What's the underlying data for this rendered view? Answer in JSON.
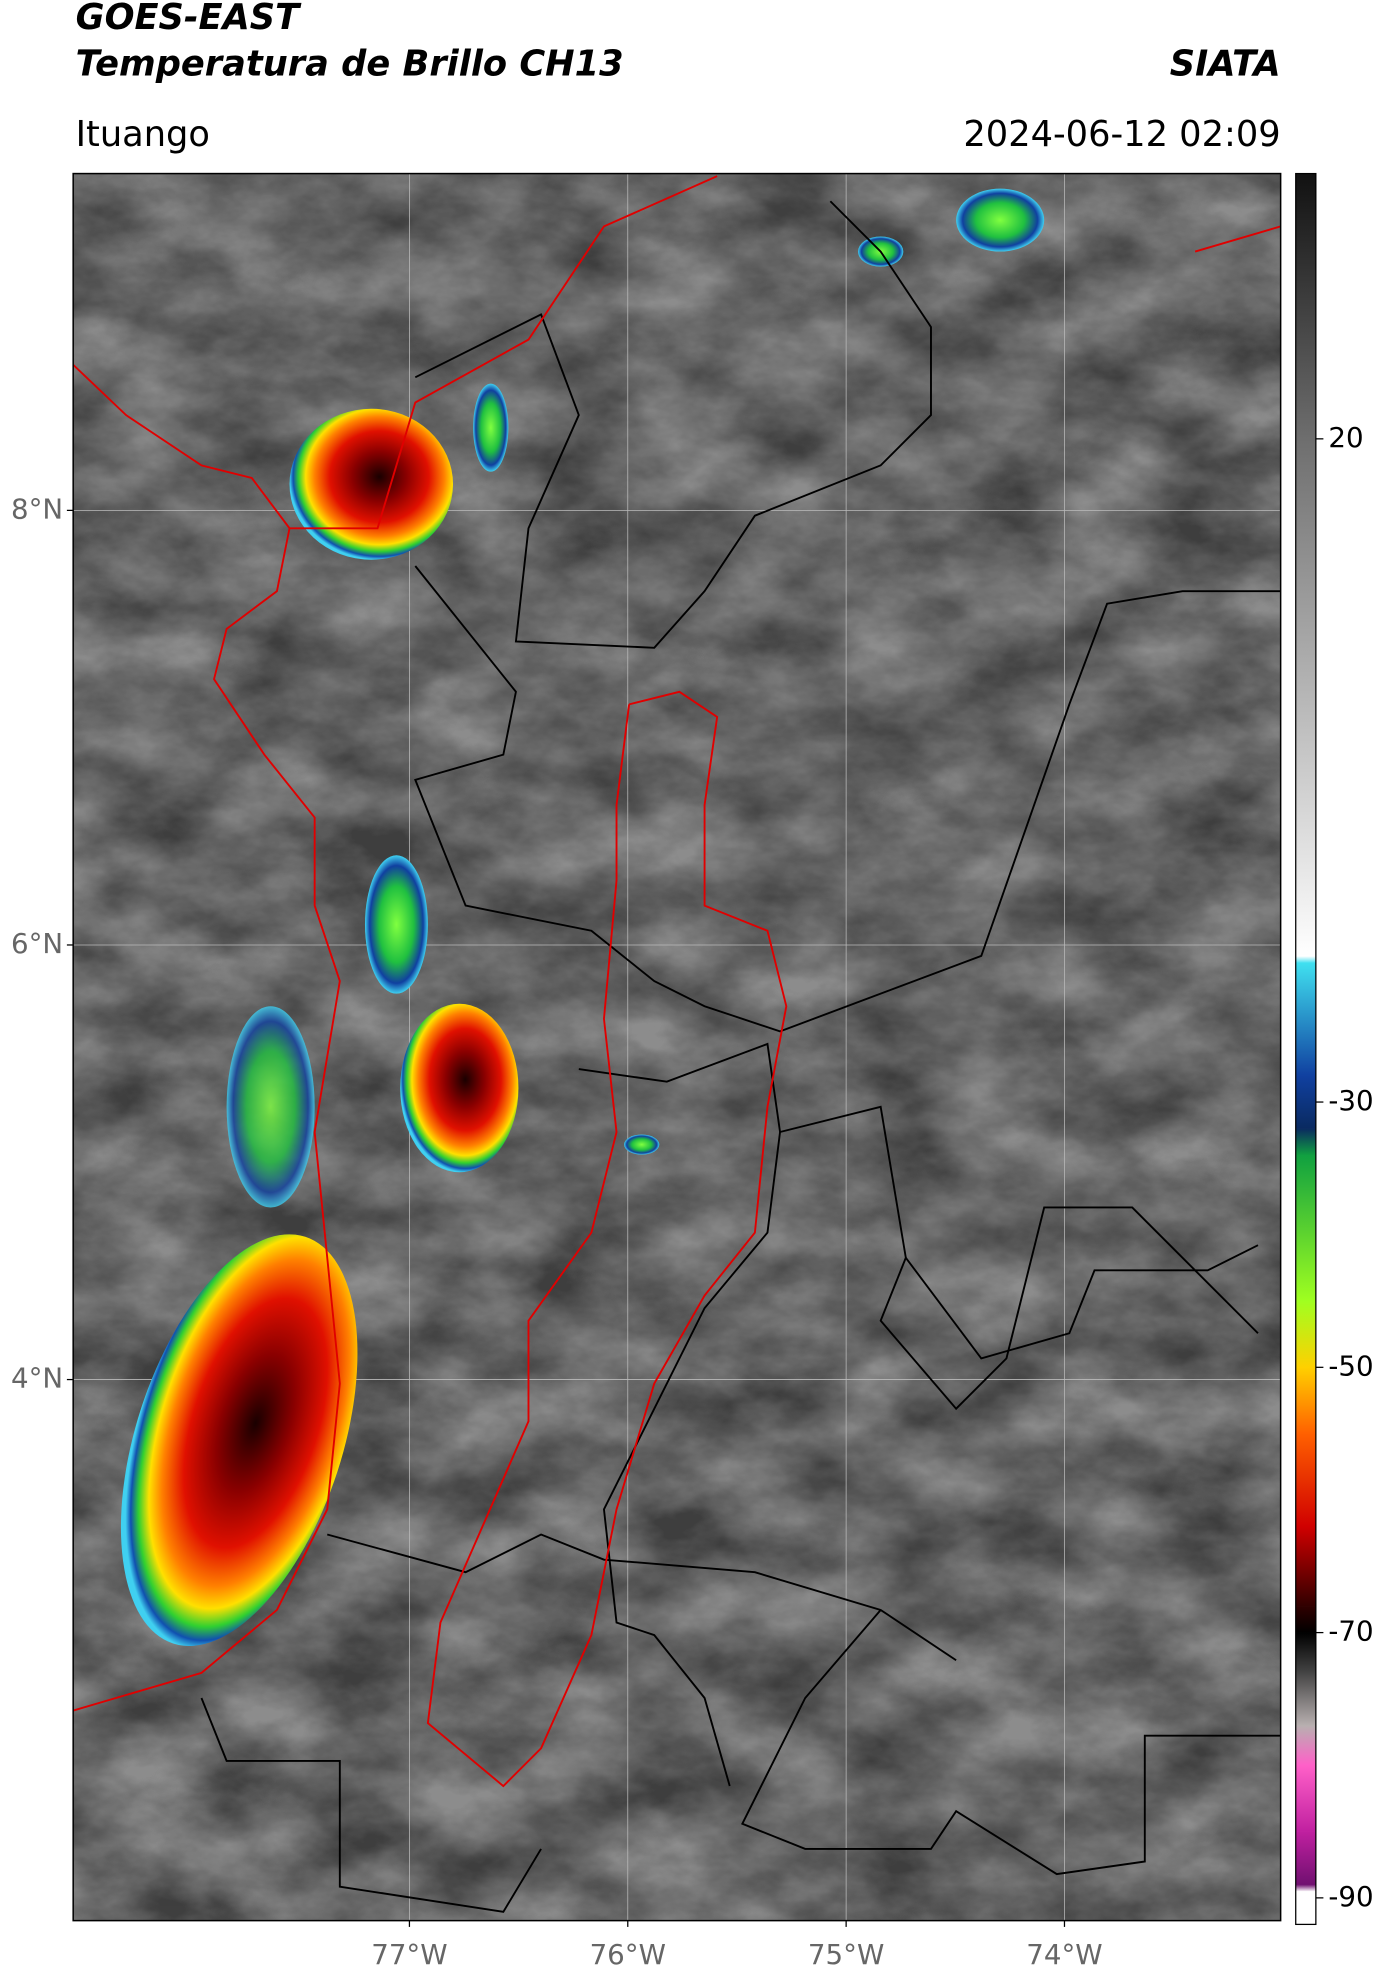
{
  "chart_data": {
    "type": "map",
    "title": "GOES-EAST",
    "subtitle": "Temperatura de Brillo CH13",
    "source": "SIATA",
    "location": "Ituango",
    "datetime": "2024-06-12 02:09",
    "xlim": [
      -78.54,
      -73.01
    ],
    "ylim": [
      1.51,
      9.55
    ],
    "xticks": [
      {
        "value": -77,
        "label": "77°W"
      },
      {
        "value": -76,
        "label": "76°W"
      },
      {
        "value": -75,
        "label": "75°W"
      },
      {
        "value": -74,
        "label": "74°W"
      }
    ],
    "yticks": [
      {
        "value": 8,
        "label": "8°N"
      },
      {
        "value": 6,
        "label": "6°N"
      },
      {
        "value": 4,
        "label": "4°N"
      }
    ],
    "grid": true,
    "colorbar": {
      "lim": [
        -92,
        40
      ],
      "ticks": [
        20,
        -30,
        -50,
        -70,
        -90
      ],
      "stops": [
        {
          "value": 40,
          "color": "#111111"
        },
        {
          "value": 20,
          "color": "#6e6e6e"
        },
        {
          "value": -19,
          "color": "#ffffff"
        },
        {
          "value": -19.5,
          "color": "#40e0f0"
        },
        {
          "value": -28,
          "color": "#1040a0"
        },
        {
          "value": -32,
          "color": "#0a2a60"
        },
        {
          "value": -34,
          "color": "#10a040"
        },
        {
          "value": -45,
          "color": "#a0ff20"
        },
        {
          "value": -50,
          "color": "#ffd000"
        },
        {
          "value": -55,
          "color": "#ff6000"
        },
        {
          "value": -62,
          "color": "#d00000"
        },
        {
          "value": -68,
          "color": "#300000"
        },
        {
          "value": -70,
          "color": "#000000"
        },
        {
          "value": -73,
          "color": "#444444"
        },
        {
          "value": -77,
          "color": "#b8b0b0"
        },
        {
          "value": -80,
          "color": "#ff60c8"
        },
        {
          "value": -85,
          "color": "#c020a0"
        },
        {
          "value": -89,
          "color": "#701070"
        },
        {
          "value": -89.5,
          "color": "#ffffff"
        },
        {
          "value": -92,
          "color": "#ffffff"
        }
      ]
    }
  }
}
